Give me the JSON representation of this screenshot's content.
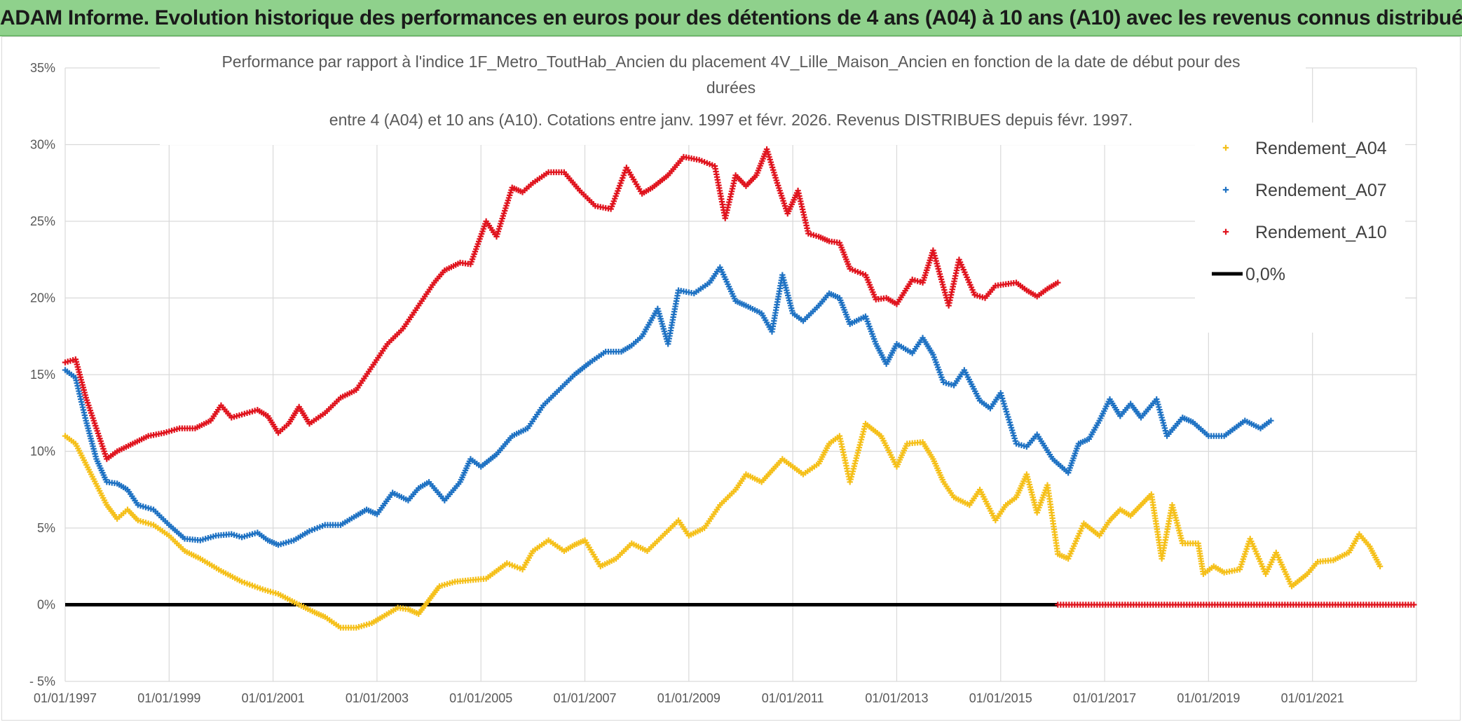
{
  "header": {
    "title": "ADAM Informe. Evolution historique des performances en euros pour des détentions de 4 ans (A04) à 10 ans (A10) avec les revenus connus distribués"
  },
  "chart_data": {
    "type": "scatter",
    "title_lines": [
      "Performance par rapport à l'indice 1F_Metro_ToutHab_Ancien  du placement 4V_Lille_Maison_Ancien en fonction de la date de début pour des",
      "durées",
      "entre 4 (A04) et 10 ans (A10). Cotations entre janv. 1997 et févr. 2026. Revenus DISTRIBUES depuis févr. 1997."
    ],
    "xlabel": "",
    "ylabel": "",
    "x_range": [
      1997.0,
      2023.0
    ],
    "ylim": [
      -5,
      35
    ],
    "y_ticks": [
      -5,
      0,
      5,
      10,
      15,
      20,
      25,
      30,
      35
    ],
    "y_tick_labels": [
      "- 5%",
      "0%",
      "5%",
      "10%",
      "15%",
      "20%",
      "25%",
      "30%",
      "35%"
    ],
    "x_ticks": [
      1997,
      1999,
      2001,
      2003,
      2005,
      2007,
      2009,
      2011,
      2013,
      2015,
      2017,
      2019,
      2021
    ],
    "x_tick_labels": [
      "01/01/1997",
      "01/01/1999",
      "01/01/2001",
      "01/01/2003",
      "01/01/2005",
      "01/01/2007",
      "01/01/2009",
      "01/01/2011",
      "01/01/2013",
      "01/01/2015",
      "01/01/2017",
      "01/01/2019",
      "01/01/2021"
    ],
    "grid": true,
    "legend_position": "right",
    "series": [
      {
        "name": "Rendement_A04",
        "color": "#f5c01a",
        "marker": "plus",
        "x": [
          1997.0,
          1997.2,
          1997.5,
          1997.8,
          1998.0,
          1998.2,
          1998.4,
          1998.7,
          1999.0,
          1999.3,
          1999.6,
          2000.0,
          2000.4,
          2000.8,
          2001.1,
          2001.5,
          2001.8,
          2002.0,
          2002.3,
          2002.6,
          2002.9,
          2003.1,
          2003.4,
          2003.6,
          2003.8,
          2004.0,
          2004.2,
          2004.5,
          2004.8,
          2005.1,
          2005.5,
          2005.8,
          2006.0,
          2006.3,
          2006.6,
          2006.8,
          2007.0,
          2007.3,
          2007.6,
          2007.9,
          2008.2,
          2008.5,
          2008.8,
          2009.0,
          2009.3,
          2009.6,
          2009.9,
          2010.1,
          2010.4,
          2010.8,
          2011.0,
          2011.2,
          2011.5,
          2011.7,
          2011.9,
          2012.1,
          2012.4,
          2012.7,
          2013.0,
          2013.2,
          2013.5,
          2013.7,
          2013.9,
          2014.1,
          2014.4,
          2014.6,
          2014.9,
          2015.1,
          2015.3,
          2015.5,
          2015.7,
          2015.9,
          2016.1,
          2016.3,
          2016.6,
          2016.9,
          2017.1,
          2017.3,
          2017.5,
          2017.7,
          2017.9,
          2018.1,
          2018.3,
          2018.5,
          2018.8,
          2018.9,
          2019.1,
          2019.3,
          2019.6,
          2019.8,
          2020.1,
          2020.3,
          2020.6,
          2020.9,
          2021.1,
          2021.4,
          2021.7,
          2021.9,
          2022.1,
          2022.3
        ],
        "y": [
          11.0,
          10.5,
          8.5,
          6.5,
          5.6,
          6.2,
          5.5,
          5.2,
          4.5,
          3.5,
          3.0,
          2.2,
          1.5,
          1.0,
          0.7,
          0.0,
          -0.5,
          -0.8,
          -1.5,
          -1.5,
          -1.2,
          -0.8,
          -0.2,
          -0.3,
          -0.6,
          0.3,
          1.2,
          1.5,
          1.6,
          1.7,
          2.7,
          2.3,
          3.5,
          4.2,
          3.5,
          3.9,
          4.2,
          2.5,
          3.0,
          4.0,
          3.5,
          4.5,
          5.5,
          4.5,
          5.0,
          6.5,
          7.5,
          8.5,
          8.0,
          9.5,
          9.0,
          8.5,
          9.2,
          10.5,
          11.0,
          8.0,
          11.8,
          11.0,
          9.0,
          10.5,
          10.6,
          9.5,
          8.0,
          7.0,
          6.5,
          7.5,
          5.5,
          6.5,
          7.0,
          8.5,
          6.0,
          7.8,
          3.3,
          3.0,
          5.3,
          4.5,
          5.5,
          6.2,
          5.8,
          6.5,
          7.2,
          3.0,
          6.5,
          4.0,
          4.0,
          2.0,
          2.5,
          2.1,
          2.3,
          4.3,
          2.0,
          3.4,
          1.2,
          2.0,
          2.8,
          2.9,
          3.4,
          4.6,
          3.8,
          2.5
        ]
      },
      {
        "name": "Rendement_A07",
        "color": "#1f72c3",
        "marker": "plus",
        "x": [
          1997.0,
          1997.2,
          1997.4,
          1997.6,
          1997.8,
          1998.0,
          1998.2,
          1998.4,
          1998.7,
          1999.0,
          1999.3,
          1999.6,
          1999.9,
          2000.2,
          2000.4,
          2000.7,
          2000.9,
          2001.1,
          2001.4,
          2001.7,
          2002.0,
          2002.3,
          2002.6,
          2002.8,
          2003.0,
          2003.3,
          2003.6,
          2003.8,
          2004.0,
          2004.3,
          2004.6,
          2004.8,
          2005.0,
          2005.3,
          2005.6,
          2005.9,
          2006.2,
          2006.5,
          2006.8,
          2007.1,
          2007.4,
          2007.7,
          2007.9,
          2008.1,
          2008.4,
          2008.6,
          2008.8,
          2009.1,
          2009.4,
          2009.6,
          2009.9,
          2010.1,
          2010.4,
          2010.6,
          2010.8,
          2011.0,
          2011.2,
          2011.5,
          2011.7,
          2011.9,
          2012.1,
          2012.4,
          2012.6,
          2012.8,
          2013.0,
          2013.3,
          2013.5,
          2013.7,
          2013.9,
          2014.1,
          2014.3,
          2014.6,
          2014.8,
          2015.0,
          2015.3,
          2015.5,
          2015.7,
          2016.0,
          2016.3,
          2016.5,
          2016.7,
          2016.9,
          2017.1,
          2017.3,
          2017.5,
          2017.7,
          2018.0,
          2018.2,
          2018.5,
          2018.7,
          2019.0,
          2019.3,
          2019.5,
          2019.7,
          2020.0,
          2020.2
        ],
        "y": [
          15.3,
          14.8,
          12.0,
          9.5,
          8.0,
          7.9,
          7.5,
          6.5,
          6.2,
          5.2,
          4.3,
          4.2,
          4.5,
          4.6,
          4.4,
          4.7,
          4.2,
          3.9,
          4.2,
          4.8,
          5.2,
          5.2,
          5.8,
          6.2,
          5.9,
          7.3,
          6.8,
          7.6,
          8.0,
          6.8,
          8.0,
          9.5,
          9.0,
          9.8,
          11.0,
          11.5,
          13.0,
          14.0,
          15.0,
          15.8,
          16.5,
          16.5,
          16.9,
          17.5,
          19.3,
          17.0,
          20.5,
          20.3,
          21.0,
          22.0,
          19.8,
          19.5,
          19.0,
          17.8,
          21.5,
          19.0,
          18.5,
          19.5,
          20.3,
          20.0,
          18.3,
          18.8,
          17.0,
          15.7,
          17.0,
          16.4,
          17.4,
          16.3,
          14.5,
          14.3,
          15.3,
          13.3,
          12.8,
          13.8,
          10.5,
          10.3,
          11.1,
          9.5,
          8.6,
          10.5,
          10.8,
          12.0,
          13.4,
          12.3,
          13.1,
          12.2,
          13.4,
          11.0,
          12.2,
          11.9,
          11.0,
          11.0,
          11.5,
          12.0,
          11.5,
          12.0
        ]
      },
      {
        "name": "Rendement_A10",
        "color": "#e0141e",
        "marker": "plus",
        "x": [
          1997.0,
          1997.2,
          1997.4,
          1997.6,
          1997.8,
          1998.0,
          1998.3,
          1998.6,
          1998.9,
          1999.2,
          1999.5,
          1999.8,
          2000.0,
          2000.2,
          2000.5,
          2000.7,
          2000.9,
          2001.1,
          2001.3,
          2001.5,
          2001.7,
          2002.0,
          2002.3,
          2002.6,
          2002.9,
          2003.2,
          2003.5,
          2003.8,
          2004.1,
          2004.3,
          2004.6,
          2004.8,
          2005.1,
          2005.3,
          2005.6,
          2005.8,
          2006.0,
          2006.3,
          2006.6,
          2006.9,
          2007.2,
          2007.5,
          2007.8,
          2008.1,
          2008.3,
          2008.6,
          2008.9,
          2009.2,
          2009.5,
          2009.7,
          2009.9,
          2010.1,
          2010.3,
          2010.5,
          2010.7,
          2010.9,
          2011.1,
          2011.3,
          2011.5,
          2011.7,
          2011.9,
          2012.1,
          2012.4,
          2012.6,
          2012.8,
          2013.0,
          2013.3,
          2013.5,
          2013.7,
          2014.0,
          2014.2,
          2014.5,
          2014.7,
          2014.9,
          2015.1,
          2015.3,
          2015.5,
          2015.7,
          2015.9,
          2016.1
        ],
        "y": [
          15.8,
          16.0,
          13.5,
          11.5,
          9.5,
          10.0,
          10.5,
          11.0,
          11.2,
          11.5,
          11.5,
          12.0,
          13.0,
          12.2,
          12.5,
          12.7,
          12.3,
          11.2,
          11.8,
          12.9,
          11.8,
          12.5,
          13.5,
          14.0,
          15.5,
          17.0,
          18.0,
          19.5,
          21.0,
          21.8,
          22.3,
          22.2,
          25.0,
          24.0,
          27.2,
          26.9,
          27.5,
          28.2,
          28.2,
          27.0,
          26.0,
          25.8,
          28.5,
          26.8,
          27.2,
          28.0,
          29.2,
          29.0,
          28.6,
          25.2,
          28.0,
          27.3,
          28.0,
          29.7,
          27.5,
          25.5,
          27.0,
          24.2,
          24.0,
          23.7,
          23.6,
          21.9,
          21.5,
          19.9,
          20.0,
          19.6,
          21.2,
          21.0,
          23.1,
          19.5,
          22.5,
          20.2,
          20.0,
          20.8,
          20.9,
          21.0,
          20.5,
          20.1,
          20.6,
          21.0
        ],
        "flat_tail": {
          "x_start": 2016.1,
          "x_end": 2023.0,
          "y": 0.0
        }
      },
      {
        "name": "0,0%",
        "color": "#000000",
        "marker": "line",
        "x": [
          1997.0,
          2016.1
        ],
        "y": [
          0.0,
          0.0
        ]
      }
    ]
  }
}
